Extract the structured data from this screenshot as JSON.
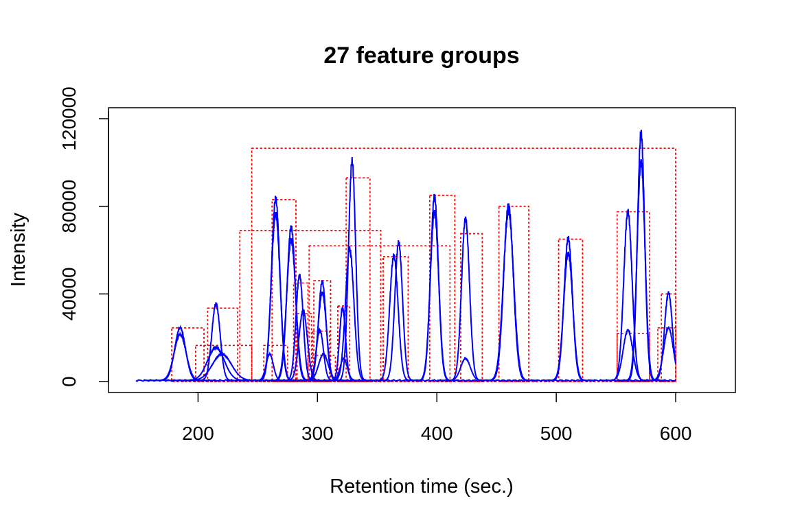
{
  "chart_data": {
    "type": "line",
    "title": "27 feature groups",
    "xlabel": "Retention time (sec.)",
    "ylabel": "Intensity",
    "xlim": [
      125,
      650
    ],
    "ylim": [
      -5000,
      125000
    ],
    "x_ticks": [
      200,
      300,
      400,
      500,
      600
    ],
    "y_ticks": [
      0,
      40000,
      80000,
      120000
    ],
    "x_tick_labels": [
      "200",
      "300",
      "400",
      "500",
      "600"
    ],
    "y_tick_labels": [
      "0",
      "40000",
      "80000",
      "120000"
    ],
    "grid": false,
    "legend": "none",
    "colors": {
      "trace": "#0000ff",
      "box": "#ff0000",
      "axis": "#000000"
    },
    "baseline": {
      "x_start": 148,
      "x_end": 600,
      "level": 500
    },
    "peaks": [
      {
        "center": 185,
        "height": 24000,
        "width": 4.5,
        "box": [
          178,
          205,
          0,
          24500
        ]
      },
      {
        "center": 185,
        "height": 21000,
        "width": 5,
        "box": [
          178,
          205,
          0,
          24500
        ]
      },
      {
        "center": 215,
        "height": 35000,
        "width": 3.5,
        "box": [
          208,
          233,
          0,
          33500
        ]
      },
      {
        "center": 215,
        "height": 15000,
        "width": 7,
        "box": [
          198,
          245,
          0,
          16500
        ]
      },
      {
        "center": 220,
        "height": 12000,
        "width": 8,
        "box": [
          198,
          245,
          0,
          16500
        ]
      },
      {
        "center": 260,
        "height": 12000,
        "width": 3,
        "box": [
          255,
          275,
          0,
          16500
        ]
      },
      {
        "center": 265,
        "height": 83000,
        "width": 3.5,
        "box": [
          262,
          282,
          0,
          83000
        ]
      },
      {
        "center": 265,
        "height": 76000,
        "width": 3.7,
        "box": [
          262,
          282,
          0,
          83000
        ]
      },
      {
        "center": 278,
        "height": 70000,
        "width": 3.5,
        "box": [
          235,
          353,
          0,
          69000
        ]
      },
      {
        "center": 278,
        "height": 64000,
        "width": 3.8,
        "box": [
          235,
          353,
          0,
          69000
        ]
      },
      {
        "center": 285,
        "height": 48000,
        "width": 3,
        "box": [
          280,
          292,
          0,
          45000
        ]
      },
      {
        "center": 288,
        "height": 32000,
        "width": 3.5,
        "box": [
          283,
          295,
          0,
          31000
        ]
      },
      {
        "center": 302,
        "height": 23000,
        "width": 3,
        "box": [
          296,
          310,
          0,
          23000
        ]
      },
      {
        "center": 304,
        "height": 45000,
        "width": 3.2,
        "box": [
          297,
          311,
          0,
          46000
        ]
      },
      {
        "center": 304,
        "height": 40000,
        "width": 3.5,
        "box": [
          297,
          311,
          0,
          46000
        ]
      },
      {
        "center": 305,
        "height": 12000,
        "width": 4,
        "box": [
          292,
          315,
          0,
          12000
        ]
      },
      {
        "center": 321,
        "height": 33000,
        "width": 2.5,
        "box": [
          317,
          327,
          0,
          34500
        ]
      },
      {
        "center": 322,
        "height": 10000,
        "width": 3,
        "box": [
          317,
          327,
          0,
          34500
        ]
      },
      {
        "center": 327,
        "height": 60000,
        "width": 3.5,
        "box": [
          293,
          411,
          0,
          62000
        ]
      },
      {
        "center": 329,
        "height": 100000,
        "width": 3,
        "box": [
          324,
          344,
          0,
          93000
        ]
      },
      {
        "center": 364,
        "height": 57000,
        "width": 3.5,
        "box": [
          355,
          376,
          0,
          57000
        ]
      },
      {
        "center": 368,
        "height": 63000,
        "width": 3.2,
        "box": [
          355,
          376,
          0,
          57000
        ]
      },
      {
        "center": 398,
        "height": 84000,
        "width": 3.3,
        "box": [
          394,
          415,
          0,
          85000
        ]
      },
      {
        "center": 398,
        "height": 77000,
        "width": 3.5,
        "box": [
          394,
          415,
          0,
          85000
        ]
      },
      {
        "center": 424,
        "height": 74000,
        "width": 3.3,
        "box": [
          420,
          438,
          0,
          67500
        ]
      },
      {
        "center": 424,
        "height": 10000,
        "width": 4,
        "box": [
          420,
          438,
          0,
          67500
        ]
      },
      {
        "center": 460,
        "height": 80000,
        "width": 4,
        "box": [
          452,
          477,
          0,
          80000
        ]
      },
      {
        "center": 460,
        "height": 77000,
        "width": 4.3,
        "box": [
          452,
          477,
          0,
          80000
        ]
      },
      {
        "center": 510,
        "height": 65000,
        "width": 3.5,
        "box": [
          502,
          522,
          0,
          65000
        ]
      },
      {
        "center": 510,
        "height": 58000,
        "width": 3.8,
        "box": [
          502,
          522,
          0,
          65000
        ]
      },
      {
        "center": 560,
        "height": 77000,
        "width": 3.5,
        "box": [
          551,
          578,
          0,
          77500
        ]
      },
      {
        "center": 560,
        "height": 23000,
        "width": 4,
        "box": [
          551,
          578,
          0,
          22000
        ]
      },
      {
        "center": 571,
        "height": 113000,
        "width": 3,
        "box": [
          245,
          600,
          0,
          106500
        ]
      },
      {
        "center": 571,
        "height": 100000,
        "width": 3.3,
        "box": [
          245,
          600,
          0,
          106500
        ]
      },
      {
        "center": 594,
        "height": 40000,
        "width": 3.3,
        "box": [
          588,
          600,
          0,
          40000
        ]
      },
      {
        "center": 594,
        "height": 24000,
        "width": 4,
        "box": [
          585,
          600,
          0,
          24500
        ]
      }
    ]
  }
}
